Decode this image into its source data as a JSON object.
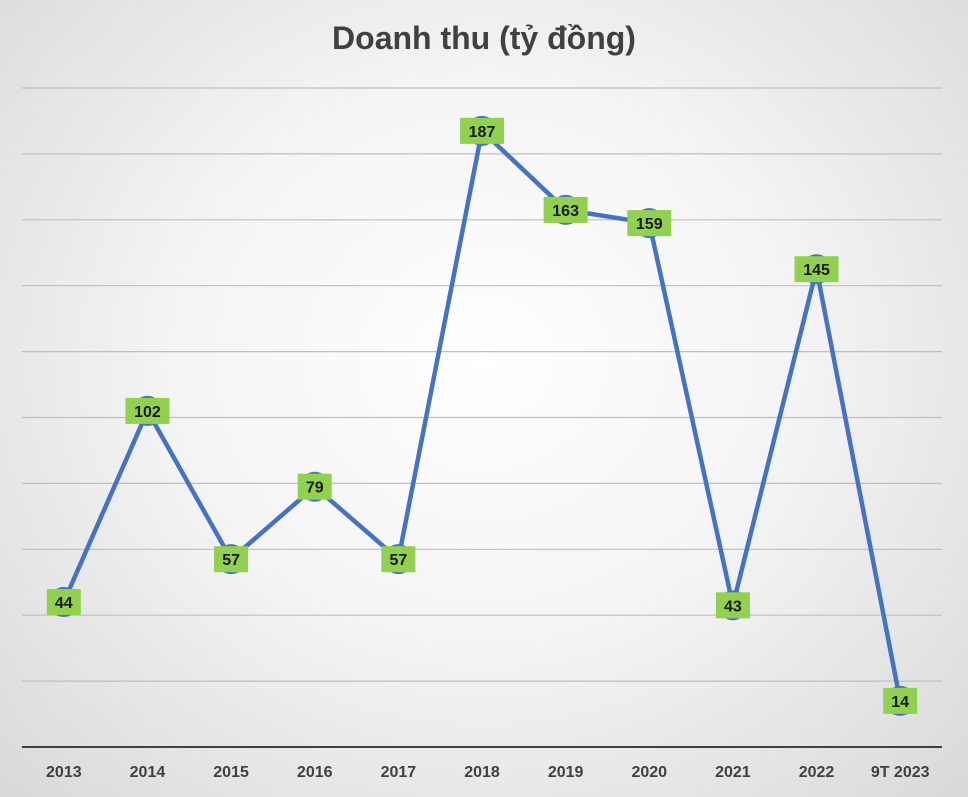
{
  "chart_data": {
    "type": "line",
    "title": "Doanh thu (tỷ đồng)",
    "xlabel": "",
    "ylabel": "",
    "categories": [
      "2013",
      "2014",
      "2015",
      "2016",
      "2017",
      "2018",
      "2019",
      "2020",
      "2021",
      "2022",
      "9T 2023"
    ],
    "series": [
      {
        "values": [
          44,
          102,
          57,
          79,
          57,
          187,
          163,
          159,
          43,
          145,
          14
        ]
      }
    ],
    "ylim": [
      0,
      200
    ],
    "grid": true,
    "legend": "none",
    "colors": {
      "line": "#4472c4",
      "label_box": "#92d050",
      "grid": "#bfbfbf",
      "axis": "#404040"
    }
  }
}
